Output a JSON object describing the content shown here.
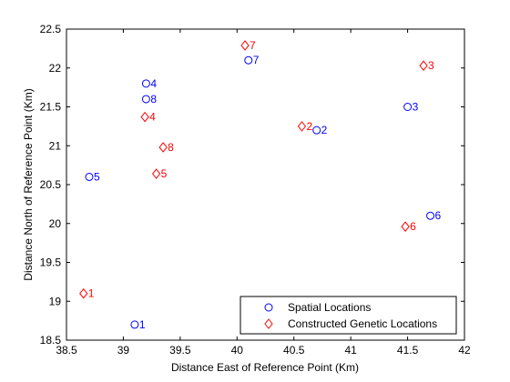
{
  "chart_data": {
    "type": "scatter",
    "xlabel": "Distance East of Reference Point (Km)",
    "ylabel": "Distance North of Reference Point (Km)",
    "xlim": [
      38.5,
      42
    ],
    "ylim": [
      18.5,
      22.5
    ],
    "xticks": [
      "38.5",
      "39",
      "39.5",
      "40",
      "40.5",
      "41",
      "41.5",
      "42"
    ],
    "yticks": [
      "18.5",
      "19",
      "19.5",
      "20",
      "20.5",
      "21",
      "21.5",
      "22",
      "22.5"
    ],
    "grid": false,
    "legend_position": "bottom-right",
    "series": [
      {
        "name": "Spatial Locations",
        "marker": "circle",
        "color": "#0000ff",
        "points": [
          {
            "label": "1",
            "x": 39.1,
            "y": 18.7
          },
          {
            "label": "2",
            "x": 40.7,
            "y": 21.2
          },
          {
            "label": "3",
            "x": 41.5,
            "y": 21.5
          },
          {
            "label": "4",
            "x": 39.2,
            "y": 21.8
          },
          {
            "label": "5",
            "x": 38.7,
            "y": 20.6
          },
          {
            "label": "6",
            "x": 41.7,
            "y": 20.1
          },
          {
            "label": "7",
            "x": 40.1,
            "y": 22.1
          },
          {
            "label": "8",
            "x": 39.2,
            "y": 21.6
          }
        ]
      },
      {
        "name": "Constructed Genetic Locations",
        "marker": "diamond",
        "color": "#ff0000",
        "points": [
          {
            "label": "1",
            "x": 38.65,
            "y": 19.1
          },
          {
            "label": "2",
            "x": 40.57,
            "y": 21.25
          },
          {
            "label": "3",
            "x": 41.64,
            "y": 22.03
          },
          {
            "label": "4",
            "x": 39.19,
            "y": 21.37
          },
          {
            "label": "5",
            "x": 39.29,
            "y": 20.64
          },
          {
            "label": "6",
            "x": 41.48,
            "y": 19.96
          },
          {
            "label": "7",
            "x": 40.07,
            "y": 22.29
          },
          {
            "label": "8",
            "x": 39.35,
            "y": 20.98
          }
        ]
      }
    ]
  }
}
